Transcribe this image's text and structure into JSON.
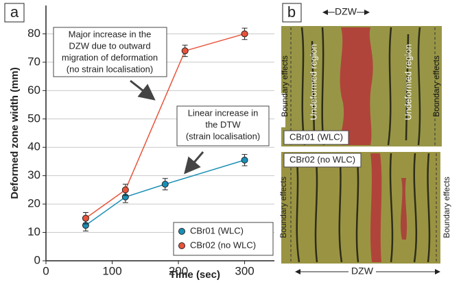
{
  "chart_data": {
    "type": "line",
    "xlabel": "Time (sec)",
    "ylabel": "Deformed zone width (mm)",
    "xlim": [
      0,
      345
    ],
    "xticks": [
      0,
      100,
      200,
      300
    ],
    "ylim": [
      0,
      90
    ],
    "yticks": [
      0,
      10,
      20,
      30,
      40,
      50,
      60,
      70,
      80
    ],
    "grid": true,
    "legend": "lower right",
    "series": [
      {
        "name": "CBr01 (WLC)",
        "color": "#1a8fb5",
        "x": [
          60,
          120,
          180,
          300
        ],
        "values": [
          12.5,
          22.5,
          27,
          35.5
        ],
        "errors": [
          2,
          2,
          2,
          2
        ]
      },
      {
        "name": "CBr02 (no WLC)",
        "color": "#e8533a",
        "x": [
          60,
          120,
          210,
          300
        ],
        "values": [
          15,
          25,
          74,
          80
        ],
        "errors": [
          2,
          2,
          2,
          2
        ]
      }
    ],
    "annotations": [
      {
        "lines": [
          "Major increase in the",
          "DZW due to outward",
          "migration of deformation",
          "(no strain localisation)"
        ]
      },
      {
        "lines": [
          "Linear increase in",
          "the DTW",
          "(strain localisation)"
        ]
      }
    ]
  },
  "panel_labels": [
    "a",
    "b"
  ],
  "photos": {
    "top": {
      "dimension": "DZW",
      "left": "Boundary effects",
      "right": "Boundary effects",
      "region_left": "Undeformed region",
      "region_right": "Undeformed region",
      "caption": "CBr01 (WLC)"
    },
    "bottom": {
      "dimension": "DZW",
      "left": "Boundary effects",
      "right": "Boundary effects",
      "caption": "CBr02 (no WLC)"
    }
  }
}
